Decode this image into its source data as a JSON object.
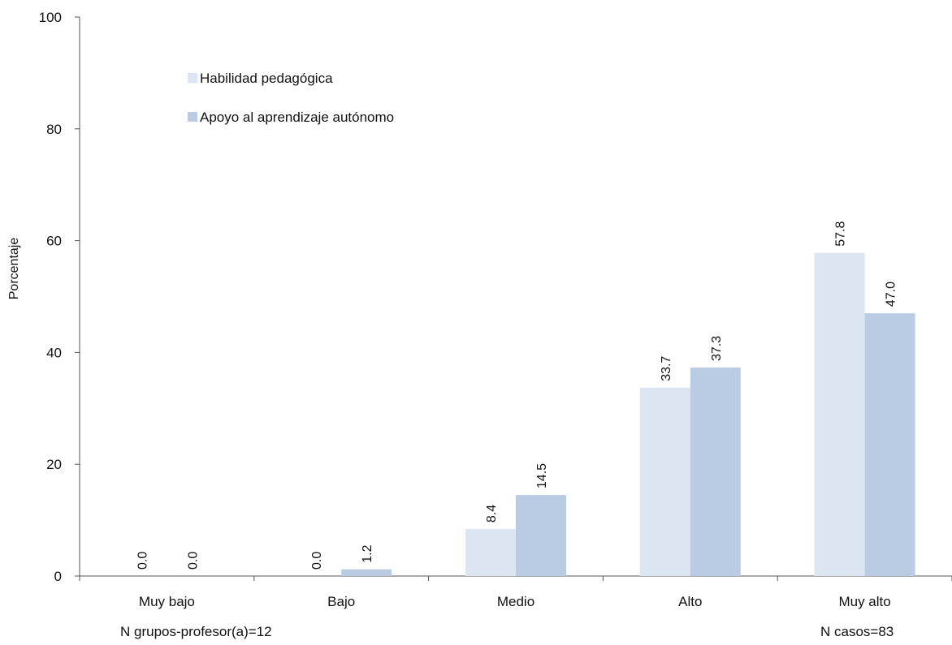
{
  "chart_data": {
    "type": "bar",
    "ylabel": "Porcentaje",
    "ylim": [
      0,
      100
    ],
    "yticks": [
      0,
      20,
      40,
      60,
      80,
      100
    ],
    "categories": [
      "Muy bajo",
      "Bajo",
      "Medio",
      "Alto",
      "Muy alto"
    ],
    "series": [
      {
        "name": "Habilidad pedagógica",
        "values": [
          0.0,
          0.0,
          8.4,
          33.7,
          57.8
        ],
        "labels": [
          "0.0",
          "0.0",
          "8.4",
          "33.7",
          "57.8"
        ],
        "color": "#dce6f2"
      },
      {
        "name": "Apoyo al aprendizaje autónomo",
        "values": [
          0.0,
          1.2,
          14.5,
          37.3,
          47.0
        ],
        "labels": [
          "0.0",
          "1.2",
          "14.5",
          "37.3",
          "47.0"
        ],
        "color": "#b9cce4"
      }
    ],
    "legend_position": "top-left"
  },
  "notes": {
    "left": "N grupos-profesor(a)=12",
    "right": "N casos=83"
  }
}
